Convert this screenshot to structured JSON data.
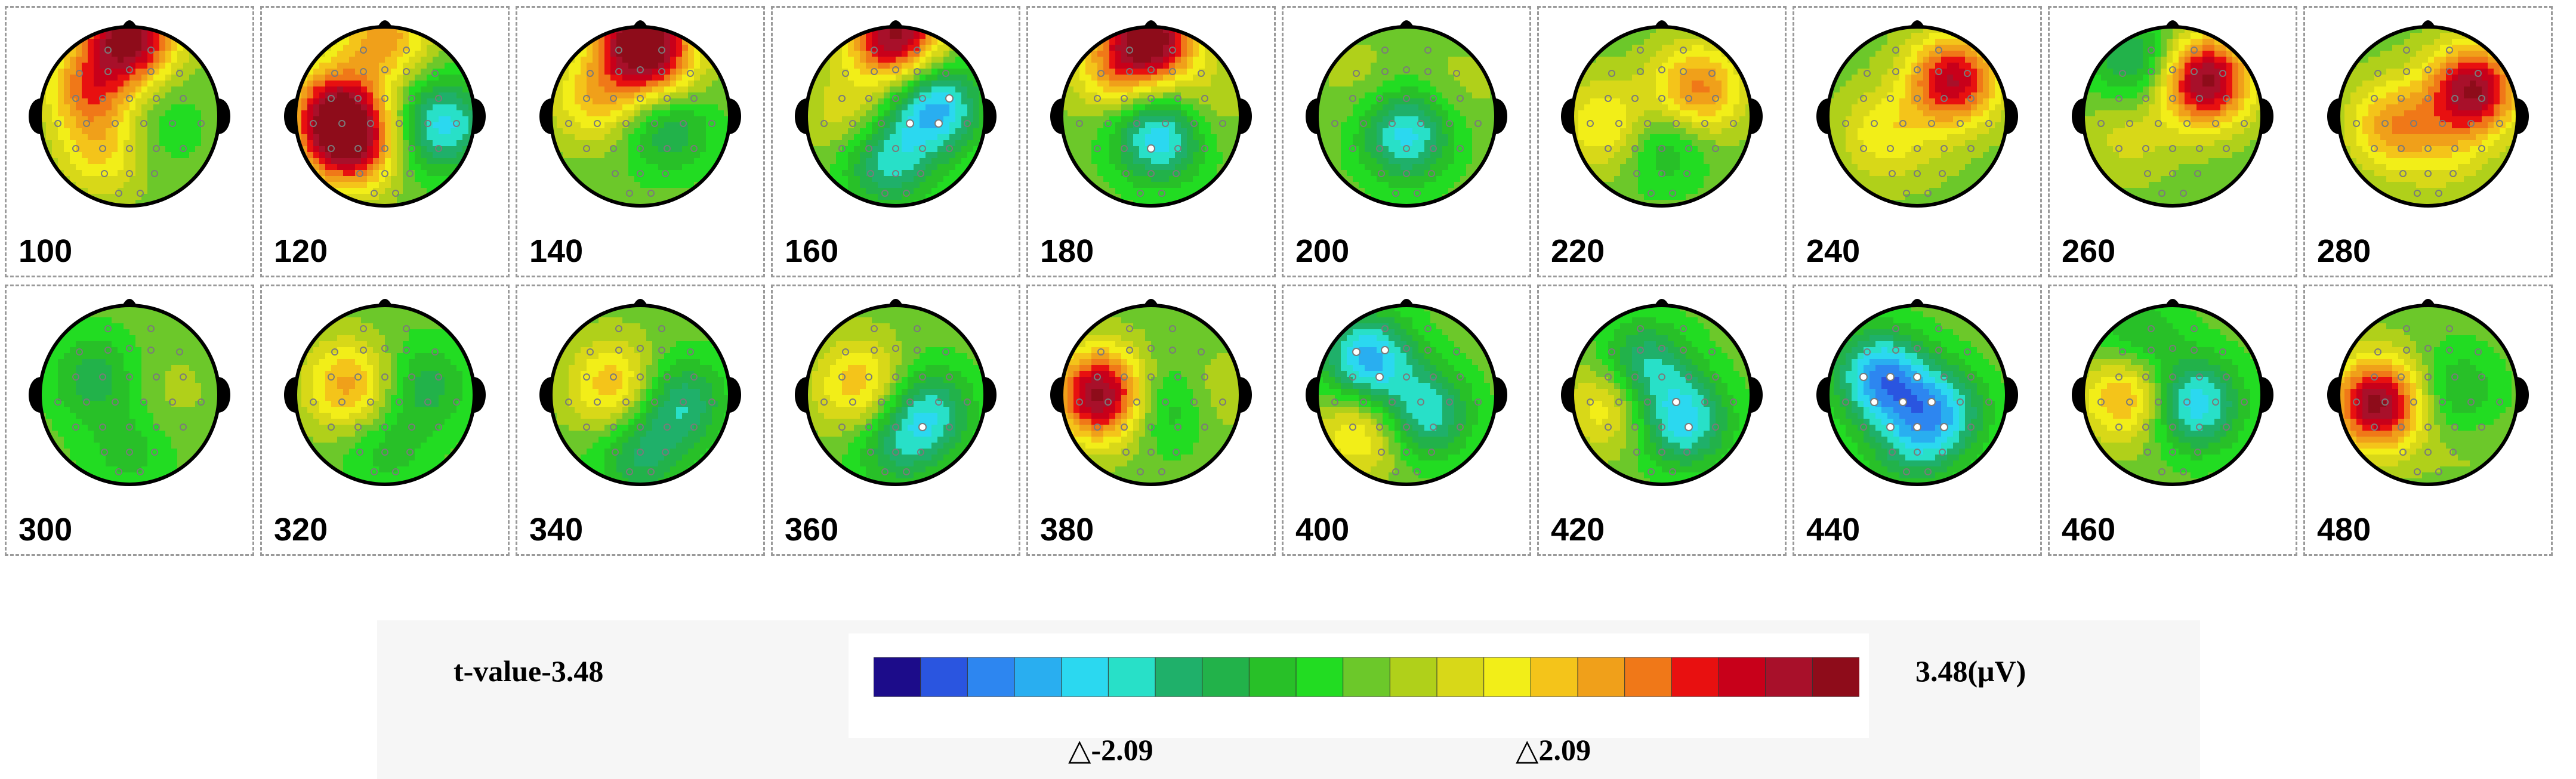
{
  "maps": [
    {
      "label": "100",
      "blobs": [
        {
          "c": [
            0.28,
            0.35
          ],
          "v": 0.55
        },
        {
          "c": [
            0.35,
            0.7
          ],
          "v": 0.35
        },
        {
          "c": [
            0.65,
            0.55
          ],
          "v": -0.15
        },
        {
          "c": [
            0.5,
            0.05
          ],
          "v": 1.0
        }
      ]
    },
    {
      "label": "120",
      "blobs": [
        {
          "c": [
            0.22,
            0.45
          ],
          "v": 0.7
        },
        {
          "c": [
            0.3,
            0.65
          ],
          "v": 0.9
        },
        {
          "c": [
            0.82,
            0.55
          ],
          "v": -0.6
        },
        {
          "c": [
            0.5,
            0.05
          ],
          "v": 0.5
        }
      ]
    },
    {
      "label": "140",
      "blobs": [
        {
          "c": [
            0.25,
            0.4
          ],
          "v": 0.4
        },
        {
          "c": [
            0.6,
            0.25
          ],
          "v": 0.4
        },
        {
          "c": [
            0.65,
            0.55
          ],
          "v": -0.4
        },
        {
          "c": [
            0.5,
            0.05
          ],
          "v": 1.0
        }
      ]
    },
    {
      "label": "160",
      "blobs": [
        {
          "c": [
            0.25,
            0.5
          ],
          "v": 0.25
        },
        {
          "c": [
            0.72,
            0.45
          ],
          "v": -0.7
        },
        {
          "c": [
            0.45,
            0.75
          ],
          "v": -0.5
        },
        {
          "c": [
            0.5,
            0.05
          ],
          "v": 1.0
        }
      ]
    },
    {
      "label": "180",
      "blobs": [
        {
          "c": [
            0.55,
            0.6
          ],
          "v": -0.7
        },
        {
          "c": [
            0.3,
            0.25
          ],
          "v": 0.4
        },
        {
          "c": [
            0.75,
            0.45
          ],
          "v": 0.2
        },
        {
          "c": [
            0.5,
            0.05
          ],
          "v": 1.0
        }
      ]
    },
    {
      "label": "200",
      "blobs": [
        {
          "c": [
            0.5,
            0.6
          ],
          "v": -0.6
        },
        {
          "c": [
            0.25,
            0.3
          ],
          "v": 0.1
        },
        {
          "c": [
            0.78,
            0.35
          ],
          "v": 0.1
        }
      ]
    },
    {
      "label": "220",
      "blobs": [
        {
          "c": [
            0.7,
            0.35
          ],
          "v": 0.6
        },
        {
          "c": [
            0.2,
            0.55
          ],
          "v": 0.4
        },
        {
          "c": [
            0.5,
            0.65
          ],
          "v": -0.3
        }
      ]
    },
    {
      "label": "240",
      "blobs": [
        {
          "c": [
            0.7,
            0.3
          ],
          "v": 0.85
        },
        {
          "c": [
            0.3,
            0.6
          ],
          "v": 0.3
        },
        {
          "c": [
            0.55,
            0.7
          ],
          "v": 0.05
        }
      ]
    },
    {
      "label": "260",
      "blobs": [
        {
          "c": [
            0.68,
            0.3
          ],
          "v": 1.0
        },
        {
          "c": [
            0.25,
            0.6
          ],
          "v": 0.2
        },
        {
          "c": [
            0.3,
            0.2
          ],
          "v": -0.4
        }
      ]
    },
    {
      "label": "280",
      "blobs": [
        {
          "c": [
            0.75,
            0.35
          ],
          "v": 0.95
        },
        {
          "c": [
            0.3,
            0.55
          ],
          "v": 0.5
        },
        {
          "c": [
            0.6,
            0.7
          ],
          "v": 0.2
        }
      ]
    },
    {
      "label": "300",
      "blobs": [
        {
          "c": [
            0.3,
            0.4
          ],
          "v": -0.3
        },
        {
          "c": [
            0.7,
            0.5
          ],
          "v": 0.1
        },
        {
          "c": [
            0.5,
            0.8
          ],
          "v": -0.2
        }
      ]
    },
    {
      "label": "320",
      "blobs": [
        {
          "c": [
            0.3,
            0.45
          ],
          "v": 0.5
        },
        {
          "c": [
            0.72,
            0.45
          ],
          "v": -0.3
        },
        {
          "c": [
            0.5,
            0.8
          ],
          "v": -0.2
        }
      ]
    },
    {
      "label": "340",
      "blobs": [
        {
          "c": [
            0.35,
            0.45
          ],
          "v": 0.45
        },
        {
          "c": [
            0.72,
            0.55
          ],
          "v": -0.45
        },
        {
          "c": [
            0.5,
            0.85
          ],
          "v": -0.35
        }
      ]
    },
    {
      "label": "360",
      "blobs": [
        {
          "c": [
            0.3,
            0.45
          ],
          "v": 0.45
        },
        {
          "c": [
            0.68,
            0.6
          ],
          "v": -0.5
        },
        {
          "c": [
            0.5,
            0.8
          ],
          "v": -0.3
        }
      ]
    },
    {
      "label": "380",
      "blobs": [
        {
          "c": [
            0.22,
            0.5
          ],
          "v": 1.0
        },
        {
          "c": [
            0.6,
            0.55
          ],
          "v": -0.35
        },
        {
          "c": [
            0.8,
            0.5
          ],
          "v": 0.2
        }
      ]
    },
    {
      "label": "400",
      "blobs": [
        {
          "c": [
            0.28,
            0.3
          ],
          "v": -0.7
        },
        {
          "c": [
            0.6,
            0.6
          ],
          "v": -0.55
        },
        {
          "c": [
            0.25,
            0.7
          ],
          "v": 0.4
        }
      ]
    },
    {
      "label": "420",
      "blobs": [
        {
          "c": [
            0.4,
            0.35
          ],
          "v": -0.5
        },
        {
          "c": [
            0.62,
            0.65
          ],
          "v": -0.6
        },
        {
          "c": [
            0.22,
            0.55
          ],
          "v": 0.4
        }
      ]
    },
    {
      "label": "440",
      "blobs": [
        {
          "c": [
            0.3,
            0.4
          ],
          "v": -0.75
        },
        {
          "c": [
            0.62,
            0.6
          ],
          "v": -0.6
        },
        {
          "c": [
            0.45,
            0.8
          ],
          "v": -0.3
        }
      ]
    },
    {
      "label": "460",
      "blobs": [
        {
          "c": [
            0.25,
            0.5
          ],
          "v": 0.55
        },
        {
          "c": [
            0.62,
            0.55
          ],
          "v": -0.65
        },
        {
          "c": [
            0.3,
            0.2
          ],
          "v": -0.3
        }
      ]
    },
    {
      "label": "480",
      "blobs": [
        {
          "c": [
            0.22,
            0.55
          ],
          "v": 1.0
        },
        {
          "c": [
            0.65,
            0.5
          ],
          "v": -0.3
        },
        {
          "c": [
            0.7,
            0.75
          ],
          "v": 0.1
        }
      ]
    }
  ],
  "legend": {
    "min_label": "t-value-3.48",
    "max_label": "3.48(μV)",
    "threshold_neg": "-2.09",
    "threshold_pos": "2.09",
    "colors": [
      "#1c0c8a",
      "#2a55e0",
      "#2d86f0",
      "#29aef0",
      "#2bd8f0",
      "#28e0c8",
      "#1fb06a",
      "#22b24a",
      "#28c028",
      "#22dc22",
      "#6cc82a",
      "#b0d01a",
      "#d8d818",
      "#f2ee18",
      "#f4c41a",
      "#f0a01a",
      "#f07818",
      "#e81010",
      "#c8001a",
      "#a8102a",
      "#8e0c1a"
    ]
  },
  "head_colors": {
    "outline": "#000000",
    "ears": "#000000",
    "nose": "#000000",
    "electrode": "#7a7a7a",
    "marked_electrode": "#ffffff"
  }
}
